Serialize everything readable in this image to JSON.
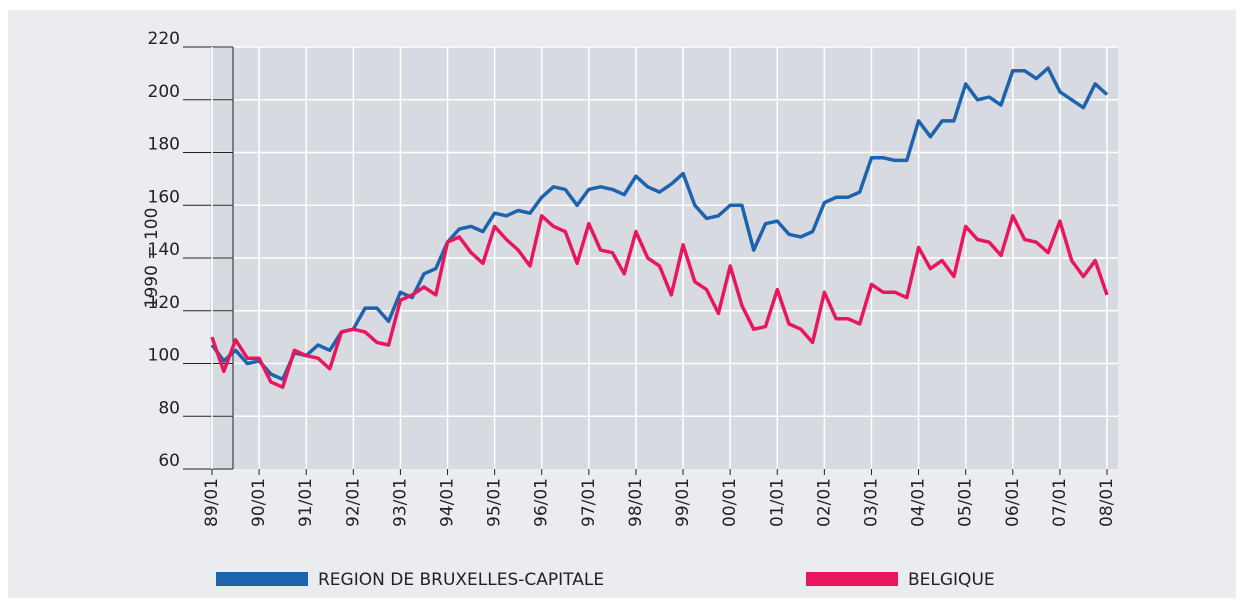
{
  "chart_data": {
    "type": "line",
    "ylabel": "1990 = 100",
    "ylim": [
      60,
      220
    ],
    "yticks": [
      60,
      80,
      100,
      120,
      140,
      160,
      180,
      200,
      220
    ],
    "grid": true,
    "xticks": [
      "89/01",
      "90/01",
      "91/01",
      "92/01",
      "93/01",
      "94/01",
      "95/01",
      "96/01",
      "97/01",
      "98/01",
      "99/01",
      "00/01",
      "01/01",
      "02/01",
      "03/01",
      "04/01",
      "05/01",
      "06/01",
      "07/01",
      "08/01"
    ],
    "x": [
      "89/01",
      "89/04",
      "89/07",
      "89/10",
      "90/01",
      "90/04",
      "90/07",
      "90/10",
      "91/01",
      "91/04",
      "91/07",
      "91/10",
      "92/01",
      "92/04",
      "92/07",
      "92/10",
      "93/01",
      "93/04",
      "93/07",
      "93/10",
      "94/01",
      "94/04",
      "94/07",
      "94/10",
      "95/01",
      "95/04",
      "95/07",
      "95/10",
      "96/01",
      "96/04",
      "96/07",
      "96/10",
      "97/01",
      "97/04",
      "97/07",
      "97/10",
      "98/01",
      "98/04",
      "98/07",
      "98/10",
      "99/01",
      "99/04",
      "99/07",
      "99/10",
      "00/01",
      "00/04",
      "00/07",
      "00/10",
      "01/01",
      "01/04",
      "01/07",
      "01/10",
      "02/01",
      "02/04",
      "02/07",
      "02/10",
      "03/01",
      "03/04",
      "03/07",
      "03/10",
      "04/01",
      "04/04",
      "04/07",
      "04/10",
      "05/01",
      "05/04",
      "05/07",
      "05/10",
      "06/01",
      "06/04",
      "06/07",
      "06/10",
      "07/01",
      "07/04",
      "07/07",
      "07/10",
      "08/01"
    ],
    "legend": "bottom",
    "series": [
      {
        "name": "REGION DE BRUXELLES-CAPITALE",
        "color": "#1e63ad",
        "values": [
          107,
          101,
          105,
          100,
          101,
          96,
          94,
          104,
          103,
          107,
          105,
          112,
          113,
          121,
          121,
          116,
          127,
          125,
          134,
          136,
          146,
          151,
          152,
          150,
          157,
          156,
          158,
          157,
          163,
          167,
          166,
          160,
          166,
          167,
          166,
          164,
          171,
          167,
          165,
          168,
          172,
          160,
          155,
          156,
          160,
          160,
          143,
          153,
          154,
          149,
          148,
          150,
          161,
          163,
          163,
          165,
          178,
          178,
          177,
          177,
          192,
          186,
          192,
          192,
          206,
          200,
          201,
          198,
          211,
          211,
          208,
          212,
          203,
          200,
          197,
          206,
          202
        ]
      },
      {
        "name": "BELGIQUE",
        "color": "#e8175d",
        "values": [
          110,
          97,
          109,
          102,
          102,
          93,
          91,
          105,
          103,
          102,
          98,
          112,
          113,
          112,
          108,
          107,
          124,
          126,
          129,
          126,
          146,
          148,
          142,
          138,
          152,
          147,
          143,
          137,
          156,
          152,
          150,
          138,
          153,
          143,
          142,
          134,
          150,
          140,
          137,
          126,
          145,
          131,
          128,
          119,
          137,
          122,
          113,
          114,
          128,
          115,
          113,
          108,
          127,
          117,
          117,
          115,
          130,
          127,
          127,
          125,
          144,
          136,
          139,
          133,
          152,
          147,
          146,
          141,
          156,
          147,
          146,
          142,
          154,
          139,
          133,
          139,
          126
        ]
      }
    ]
  }
}
